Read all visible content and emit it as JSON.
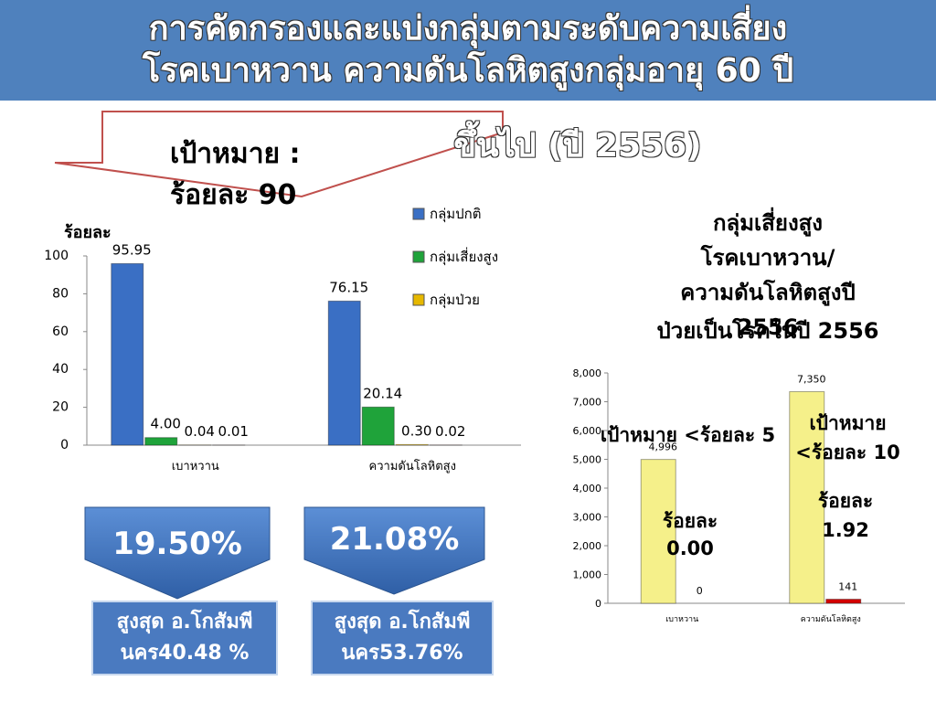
{
  "title_lines": [
    "การคัดกรองและแบ่งกลุ่มตามระดับความเสี่ยง",
    "โรคเบาหวาน ความดันโลหิตสูงกลุ่มอายุ 60 ปี",
    "ขึ้นไป (ปี 2556)"
  ],
  "target_callout": [
    "เป้าหมาย :",
    "ร้อยละ 90"
  ],
  "risk_heading": [
    "กลุ่มเสี่ยงสูง",
    "โรคเบาหวาน/",
    "ความดันโลหิตสูงปี",
    "2556"
  ],
  "summary": [
    {
      "percent": "19.50%",
      "note": [
        "สูงสุด อ.โกสัมพีนคร40.48 %"
      ]
    },
    {
      "percent": "21.08%",
      "note": [
        "สูงสุด อ.โกสัมพีนคร53.76%"
      ]
    }
  ],
  "chart_data": [
    {
      "type": "bar",
      "y_label": "ร้อยละ",
      "categories": [
        "เบาหวาน",
        "ความดันโลหิตสูง"
      ],
      "series": [
        {
          "name": "กลุ่มปกติ",
          "color": "#3a6fc4",
          "values": [
            95.95,
            76.15
          ],
          "value_labels": [
            "95.95",
            "76.15"
          ]
        },
        {
          "name": "กลุ่มเสี่ยงสูง",
          "color": "#1fa33a",
          "values": [
            4.0,
            20.14
          ],
          "value_labels": [
            "4.00",
            "20.14"
          ]
        },
        {
          "name": "กลุ่มป่วย",
          "color": "#e6b800",
          "values": [
            0.04,
            0.3
          ],
          "value_labels": [
            "0.04",
            "0.30"
          ]
        },
        {
          "color": "#c00000",
          "values": [
            0.01,
            0.02
          ],
          "value_labels": [
            "0.01",
            "0.02"
          ]
        }
      ],
      "ylim": [
        0,
        100
      ],
      "yticks": [
        0,
        20,
        40,
        60,
        80,
        100
      ],
      "grid": false,
      "legend": "right"
    },
    {
      "type": "bar",
      "title": "ป่วยเป็นโรคในปี 2556",
      "categories": [
        "เบาหวาน",
        "ความดันโลหิตสูง"
      ],
      "series": [
        {
          "color": "#f5f08a",
          "values": [
            4996,
            7350
          ],
          "value_labels": [
            "4,996",
            "7,350"
          ]
        },
        {
          "color": "#d40000",
          "values": [
            0,
            141
          ],
          "value_labels": [
            "0",
            "141"
          ]
        }
      ],
      "annotations": [
        "เป้าหมาย <ร้อยละ 5",
        "ร้อยละ 0.00",
        "เป้าหมาย <ร้อยละ 10",
        "ร้อยละ 1.92"
      ],
      "ylim": [
        0,
        8000
      ],
      "yticks": [
        0,
        {
          "value": 1000,
          "label": "1,000"
        },
        {
          "value": 2000,
          "label": "2,000"
        },
        {
          "value": 3000,
          "label": "3,000"
        },
        {
          "value": 4000,
          "label": "4,000"
        },
        {
          "value": 5000,
          "label": "5,000"
        },
        {
          "value": 6000,
          "label": "6,000"
        },
        {
          "value": 7000,
          "label": "7,000"
        },
        {
          "value": 8000,
          "label": "8,000"
        }
      ],
      "grid": false
    }
  ]
}
